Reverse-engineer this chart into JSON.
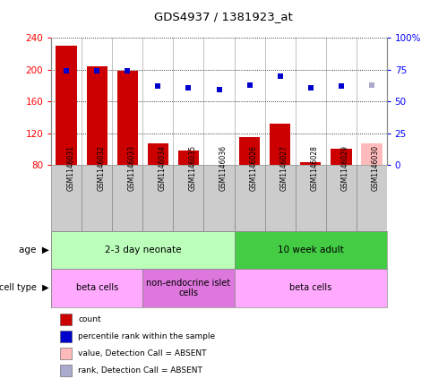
{
  "title": "GDS4937 / 1381923_at",
  "samples": [
    "GSM1146031",
    "GSM1146032",
    "GSM1146033",
    "GSM1146034",
    "GSM1146035",
    "GSM1146036",
    "GSM1146026",
    "GSM1146027",
    "GSM1146028",
    "GSM1146029",
    "GSM1146030"
  ],
  "bar_values": [
    230,
    204,
    198,
    107,
    98,
    80,
    115,
    132,
    83,
    100,
    107
  ],
  "bar_colors": [
    "#cc0000",
    "#cc0000",
    "#cc0000",
    "#cc0000",
    "#cc0000",
    "#cc0000",
    "#cc0000",
    "#cc0000",
    "#cc0000",
    "#cc0000",
    "#ffbbbb"
  ],
  "rank_values": [
    74,
    74,
    74,
    62,
    61,
    59,
    63,
    70,
    61,
    62,
    63
  ],
  "rank_colors": [
    "#0000cc",
    "#0000cc",
    "#0000cc",
    "#0000cc",
    "#0000cc",
    "#0000cc",
    "#0000cc",
    "#0000cc",
    "#0000cc",
    "#0000cc",
    "#aaaacc"
  ],
  "ylim_left": [
    80,
    240
  ],
  "ylim_right": [
    0,
    100
  ],
  "yticks_left": [
    80,
    120,
    160,
    200,
    240
  ],
  "yticks_right": [
    0,
    25,
    50,
    75,
    100
  ],
  "ytick_labels_right": [
    "0",
    "25",
    "50",
    "75",
    "100%"
  ],
  "age_groups": [
    {
      "label": "2-3 day neonate",
      "start": 0,
      "end": 6,
      "color": "#bbffbb"
    },
    {
      "label": "10 week adult",
      "start": 6,
      "end": 11,
      "color": "#44cc44"
    }
  ],
  "cell_type_groups": [
    {
      "label": "beta cells",
      "start": 0,
      "end": 3,
      "color": "#ffaaff"
    },
    {
      "label": "non-endocrine islet\ncells",
      "start": 3,
      "end": 6,
      "color": "#dd77dd"
    },
    {
      "label": "beta cells",
      "start": 6,
      "end": 11,
      "color": "#ffaaff"
    }
  ],
  "legend_items": [
    {
      "label": "count",
      "color": "#cc0000"
    },
    {
      "label": "percentile rank within the sample",
      "color": "#0000cc"
    },
    {
      "label": "value, Detection Call = ABSENT",
      "color": "#ffbbbb"
    },
    {
      "label": "rank, Detection Call = ABSENT",
      "color": "#aaaacc"
    }
  ],
  "background_color": "#ffffff",
  "bar_width": 0.7
}
